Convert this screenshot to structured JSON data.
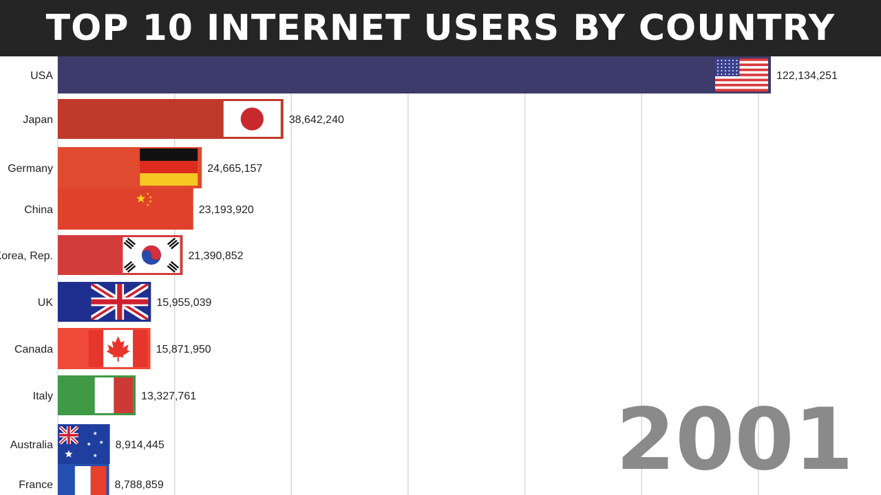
{
  "title": "TOP 10 INTERNET USERS BY COUNTRY",
  "year": "2001",
  "chart_data": {
    "type": "bar",
    "orientation": "horizontal",
    "title": "TOP 10 INTERNET USERS BY COUNTRY",
    "year": "2001",
    "xlim": [
      0,
      125000000
    ],
    "grid": true,
    "series": [
      {
        "values": [
          122134251,
          38642240,
          24665157,
          23193920,
          21390852,
          15955039,
          15871950,
          13327761,
          8914445,
          8788859
        ]
      }
    ],
    "bars": [
      {
        "country": "USA",
        "value": 122134251,
        "value_label": "122,134,251",
        "flag": "usa-flag",
        "color": "#3d3b6b"
      },
      {
        "country": "Japan",
        "value": 38642240,
        "value_label": "38,642,240",
        "flag": "japan-flag",
        "color": "#c0392b"
      },
      {
        "country": "Germany",
        "value": 24665157,
        "value_label": "24,665,157",
        "flag": "germany-flag",
        "color": "#e04a2f"
      },
      {
        "country": "China",
        "value": 23193920,
        "value_label": "23,193,920",
        "flag": "china-flag",
        "color": "#e0412b"
      },
      {
        "country": "Korea, Rep.",
        "value": 21390852,
        "value_label": "21,390,852",
        "flag": "korea-flag",
        "color": "#d43c3c"
      },
      {
        "country": "UK",
        "value": 15955039,
        "value_label": "15,955,039",
        "flag": "uk-flag",
        "color": "#1f2f8f"
      },
      {
        "country": "Canada",
        "value": 15871950,
        "value_label": "15,871,950",
        "flag": "canada-flag",
        "color": "#ef4a3a"
      },
      {
        "country": "Italy",
        "value": 13327761,
        "value_label": "13,327,761",
        "flag": "italy-flag",
        "color": "#3f9a46"
      },
      {
        "country": "Australia",
        "value": 8914445,
        "value_label": "8,914,445",
        "flag": "australia-flag",
        "color": "#1f3f9f"
      },
      {
        "country": "France",
        "value": 8788859,
        "value_label": "8,788,859",
        "flag": "france-flag",
        "color": "#2550b0"
      }
    ]
  }
}
